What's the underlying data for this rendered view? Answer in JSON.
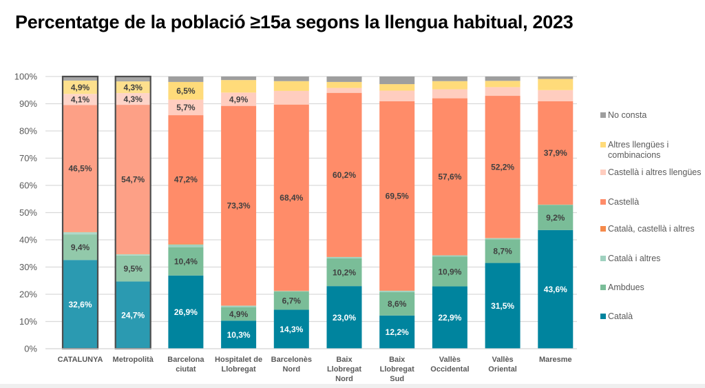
{
  "title": "Percentatge de la població ≥15a segons la llengua habitual, 2023",
  "chart_data": {
    "type": "bar",
    "stacked": true,
    "title": "Percentatge de la població ≥15a segons la llengua habitual, 2023",
    "xlabel": "",
    "ylabel": "",
    "ylim": [
      0,
      100
    ],
    "yticks": [
      "0%",
      "10%",
      "20%",
      "30%",
      "40%",
      "50%",
      "60%",
      "70%",
      "80%",
      "90%",
      "100%"
    ],
    "grid": true,
    "legend_position": "right",
    "categories": [
      [
        "CATALUNYA"
      ],
      [
        "Metropolità"
      ],
      [
        "Barcelona",
        "ciutat"
      ],
      [
        "Hospitalet de",
        "Llobregat"
      ],
      [
        "Barcelonès",
        "Nord"
      ],
      [
        "Baix",
        "Llobregat",
        "Nord"
      ],
      [
        "Baix",
        "Llobregat",
        "Sud"
      ],
      [
        "Vallès",
        "Occidental"
      ],
      [
        "Vallès",
        "Oriental"
      ],
      [
        "Maresme"
      ]
    ],
    "highlighted_categories": [
      0,
      1
    ],
    "series": [
      {
        "name": "Català",
        "color": "#00849e",
        "highlight_color": "#2b9ab1",
        "label_color": "#ffffff",
        "values": [
          32.6,
          24.7,
          26.9,
          10.3,
          14.3,
          23.0,
          12.2,
          22.9,
          31.5,
          43.6
        ],
        "labels": [
          "32,6%",
          "24,7%",
          "26,9%",
          "10,3%",
          "14,3%",
          "23,0%",
          "12,2%",
          "22,9%",
          "31,5%",
          "43,6%"
        ]
      },
      {
        "name": "Ambdues",
        "color": "#7abd98",
        "highlight_color": "#92c9aa",
        "label_color": "#404040",
        "values": [
          9.4,
          9.5,
          10.4,
          4.9,
          6.7,
          10.2,
          8.6,
          10.9,
          8.7,
          9.2
        ],
        "labels": [
          "9,4%",
          "9,5%",
          "10,4%",
          "4,9%",
          "6,7%",
          "10,2%",
          "8,6%",
          "10,9%",
          "8,7%",
          "9,2%"
        ]
      },
      {
        "name": "Català i altres",
        "color": "#9fd1bf",
        "highlight_color": "#afd8c9",
        "label_color": "#404040",
        "values": [
          0.8,
          0.5,
          1.0,
          0.6,
          0.2,
          0.5,
          0.5,
          0.5,
          0.4,
          0.1
        ],
        "labels": [
          "",
          "",
          "",
          "",
          "",
          "",
          "",
          "",
          "",
          ""
        ]
      },
      {
        "name": "Català, castellà i altres",
        "color": "#f58a4b",
        "highlight_color": "#f69a64",
        "label_color": "#404040",
        "values": [
          0.2,
          0.2,
          0.3,
          0.1,
          0.1,
          0.1,
          0.1,
          0.1,
          0.1,
          0.1
        ],
        "labels": [
          "",
          "",
          "",
          "",
          "",
          "",
          "",
          "",
          "",
          ""
        ]
      },
      {
        "name": "Castellà",
        "color": "#ff8c69",
        "highlight_color": "#fda086",
        "label_color": "#404040",
        "values": [
          46.5,
          54.7,
          47.2,
          73.3,
          68.4,
          60.2,
          69.5,
          57.6,
          52.2,
          37.9
        ],
        "labels": [
          "46,5%",
          "54,7%",
          "47,2%",
          "73,3%",
          "68,4%",
          "60,2%",
          "69,5%",
          "57,6%",
          "52,2%",
          "37,9%"
        ]
      },
      {
        "name": "Castellà i altres llengües",
        "color": "#ffcdbf",
        "highlight_color": "#fdd4c8",
        "label_color": "#404040",
        "values": [
          4.1,
          4.3,
          5.7,
          4.9,
          5.0,
          1.8,
          3.9,
          3.3,
          3.2,
          4.1
        ],
        "labels": [
          "4,1%",
          "4,3%",
          "5,7%",
          "4,9%",
          "",
          "",
          "",
          "",
          "",
          ""
        ]
      },
      {
        "name": "Altres llengües i combinacions",
        "color": "#ffdb7a",
        "highlight_color": "#fde08d",
        "label_color": "#404040",
        "values": [
          4.9,
          4.3,
          6.5,
          4.6,
          3.6,
          2.2,
          2.4,
          3.0,
          2.3,
          4.1
        ],
        "labels": [
          "4,9%",
          "4,3%",
          "6,5%",
          "",
          "",
          "",
          "",
          "",
          "",
          ""
        ]
      },
      {
        "name": "No consta",
        "color": "#9e9e9e",
        "highlight_color": "#a6a6a6",
        "label_color": "#404040",
        "values": [
          1.5,
          1.8,
          2.0,
          1.3,
          1.7,
          2.0,
          2.8,
          1.7,
          1.6,
          0.9
        ],
        "labels": [
          "",
          "",
          "",
          "",
          "",
          "",
          "",
          "",
          "",
          ""
        ]
      }
    ],
    "legend_order": [
      "No consta",
      "Altres llengües i combinacions",
      "Castellà i altres llengües",
      "Castellà",
      "Català, castellà i altres",
      "Català i altres",
      "Ambdues",
      "Català"
    ]
  }
}
